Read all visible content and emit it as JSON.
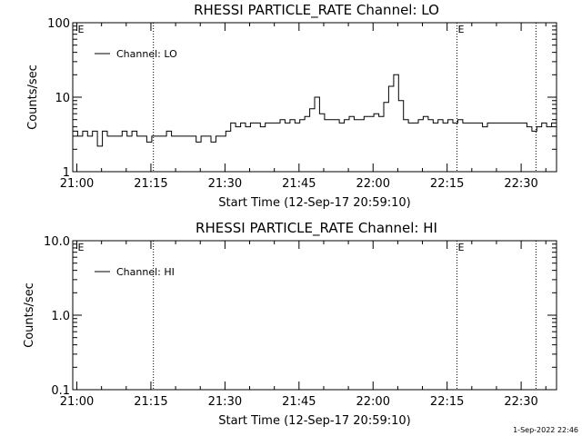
{
  "chart_data": [
    {
      "type": "line",
      "title": "RHESSI PARTICLE_RATE Channel: LO",
      "xlabel": "Start Time (12-Sep-17 20:59:10)",
      "ylabel": "Counts/sec",
      "yscale": "log",
      "ylim": [
        1,
        100
      ],
      "xlim_minutes": [
        0,
        98
      ],
      "xticks": [
        "21:00",
        "21:15",
        "21:30",
        "21:45",
        "22:00",
        "22:15",
        "22:30"
      ],
      "yticks": [
        "1",
        "10",
        "100"
      ],
      "legend": {
        "label": "Channel: LO",
        "position": "top-left"
      },
      "markers": [
        {
          "label": "E",
          "time": "21:00"
        },
        {
          "label": "E",
          "time": "22:17"
        }
      ],
      "vlines": [
        "21:15:30",
        "22:17:00",
        "22:33:00"
      ],
      "series": [
        {
          "name": "Channel: LO",
          "x_minutes": [
            0,
            1,
            2,
            3,
            4,
            5,
            6,
            7,
            8,
            9,
            10,
            11,
            12,
            13,
            14,
            15,
            16,
            17,
            18,
            19,
            20,
            21,
            22,
            23,
            24,
            25,
            26,
            27,
            28,
            29,
            30,
            31,
            32,
            33,
            34,
            35,
            36,
            37,
            38,
            39,
            40,
            41,
            42,
            43,
            44,
            45,
            46,
            47,
            48,
            49,
            50,
            51,
            52,
            53,
            54,
            55,
            56,
            57,
            58,
            59,
            60,
            61,
            62,
            63,
            64,
            65,
            66,
            67,
            68,
            69,
            70,
            71,
            72,
            73,
            74,
            75,
            76,
            77,
            78,
            79,
            80,
            81,
            82,
            83,
            84,
            85,
            86,
            87,
            88,
            89,
            90,
            91,
            92,
            93,
            94,
            95,
            96,
            97,
            98
          ],
          "y": [
            3.5,
            3,
            3.5,
            3,
            3.5,
            2.2,
            3.5,
            3,
            3,
            3,
            3.5,
            3,
            3.5,
            3,
            3,
            2.5,
            3,
            3,
            3,
            3.5,
            3,
            3,
            3,
            3,
            3,
            2.5,
            3,
            3,
            2.5,
            3,
            3,
            3.5,
            4.5,
            4,
            4.5,
            4,
            4.5,
            4.5,
            4,
            4.5,
            4.5,
            4.5,
            5,
            4.5,
            5,
            4.5,
            5,
            5.5,
            7,
            10,
            6,
            5,
            5,
            5,
            4.5,
            5,
            5.5,
            5,
            5,
            5.5,
            5.5,
            6,
            5.5,
            8.5,
            14,
            20,
            9,
            5,
            4.5,
            4.5,
            5,
            5.5,
            5,
            4.5,
            5,
            4.5,
            5,
            4.5,
            5,
            4.5,
            4.5,
            4.5,
            4.5,
            4,
            4.5,
            4.5,
            4.5,
            4.5,
            4.5,
            4.5,
            4.5,
            4.5,
            4,
            3.5,
            4,
            4.5,
            4,
            4.5,
            4.5
          ]
        }
      ]
    },
    {
      "type": "line",
      "title": "RHESSI PARTICLE_RATE Channel: HI",
      "xlabel": "Start Time (12-Sep-17 20:59:10)",
      "ylabel": "Counts/sec",
      "yscale": "log",
      "ylim": [
        0.1,
        10
      ],
      "xlim_minutes": [
        0,
        98
      ],
      "xticks": [
        "21:00",
        "21:15",
        "21:30",
        "21:45",
        "22:00",
        "22:15",
        "22:30"
      ],
      "yticks": [
        "0.1",
        "1.0",
        "10.0"
      ],
      "legend": {
        "label": "Channel: HI",
        "position": "top-left"
      },
      "markers": [
        {
          "label": "E",
          "time": "21:00"
        },
        {
          "label": "E",
          "time": "22:17"
        }
      ],
      "vlines": [
        "21:15:30",
        "22:17:00",
        "22:33:00"
      ],
      "series": [
        {
          "name": "Channel: HI",
          "x_minutes": [],
          "y": []
        }
      ]
    }
  ],
  "footer": {
    "timestamp": "1-Sep-2022 22:46"
  }
}
